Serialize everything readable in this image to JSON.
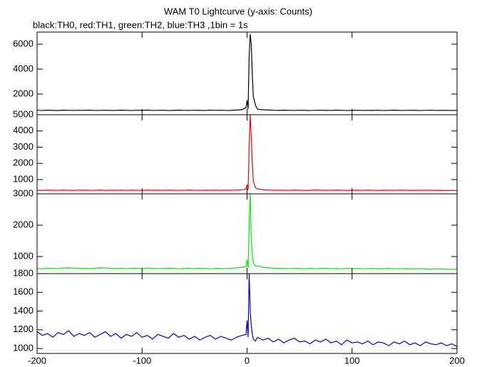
{
  "chart_data": [
    {
      "type": "line",
      "title": "WAM T0 Lightcurve (y-axis: Counts)",
      "subtitle": "black:TH0, red:TH1, green:TH2, blue:TH3 ,1bin = 1s",
      "series": [
        {
          "name": "TH0",
          "color": "#000000",
          "values": [
            700,
            680,
            710,
            690,
            675,
            705,
            695,
            685,
            700,
            690,
            710,
            680,
            695,
            700,
            685,
            690,
            705,
            695,
            680,
            700,
            690,
            710,
            685,
            695,
            700,
            680,
            690,
            705,
            695,
            685,
            700,
            690,
            680,
            710,
            695,
            700,
            685,
            690,
            720,
            740,
            900,
            1500,
            800,
            5000,
            6800,
            6000,
            3500,
            1800,
            1100,
            780,
            740,
            720,
            700,
            690,
            705,
            695,
            685,
            700,
            690,
            680,
            695,
            700,
            690,
            685,
            705,
            695,
            680,
            690,
            700,
            685,
            695,
            690,
            700,
            680,
            695,
            705,
            690,
            685,
            700,
            690,
            680,
            695,
            700,
            685,
            690,
            695,
            680,
            690
          ]
        }
      ],
      "x": [
        -200,
        -195,
        -190,
        -185,
        -180,
        -175,
        -170,
        -165,
        -160,
        -155,
        -150,
        -145,
        -140,
        -135,
        -130,
        -125,
        -120,
        -115,
        -110,
        -105,
        -100,
        -95,
        -90,
        -85,
        -80,
        -75,
        -70,
        -65,
        -60,
        -55,
        -50,
        -45,
        -40,
        -35,
        -30,
        -25,
        -20,
        -15,
        -10,
        -5,
        -1,
        0,
        1,
        2,
        3,
        4,
        5,
        6,
        8,
        10,
        15,
        20,
        25,
        30,
        35,
        40,
        45,
        50,
        55,
        60,
        65,
        70,
        75,
        80,
        85,
        90,
        95,
        100,
        105,
        110,
        115,
        120,
        125,
        130,
        135,
        140,
        145,
        150,
        155,
        160,
        165,
        170,
        175,
        180,
        185,
        190,
        195,
        200
      ],
      "xlim": [
        -200,
        200
      ],
      "ylim": [
        340,
        6970
      ],
      "yticks": [
        2000,
        4000,
        6000
      ]
    },
    {
      "type": "line",
      "series": [
        {
          "name": "TH1",
          "color": "#ff0000",
          "values": [
            340,
            330,
            350,
            345,
            335,
            355,
            340,
            330,
            345,
            350,
            335,
            340,
            355,
            330,
            345,
            340,
            350,
            335,
            345,
            340,
            330,
            355,
            340,
            345,
            335,
            350,
            340,
            330,
            345,
            355,
            340,
            335,
            345,
            340,
            350,
            335,
            345,
            340,
            360,
            370,
            400,
            700,
            350,
            3000,
            5000,
            3600,
            2000,
            900,
            500,
            420,
            380,
            360,
            350,
            345,
            340,
            335,
            350,
            345,
            330,
            340,
            355,
            345,
            335,
            340,
            350,
            345,
            330,
            340,
            345,
            335,
            350,
            340,
            330,
            345,
            340,
            335,
            350,
            345,
            330,
            340,
            335,
            345,
            340,
            330,
            335,
            325,
            330,
            320
          ]
        }
      ],
      "x": [
        -200,
        -195,
        -190,
        -185,
        -180,
        -175,
        -170,
        -165,
        -160,
        -155,
        -150,
        -145,
        -140,
        -135,
        -130,
        -125,
        -120,
        -115,
        -110,
        -105,
        -100,
        -95,
        -90,
        -85,
        -80,
        -75,
        -70,
        -65,
        -60,
        -55,
        -50,
        -45,
        -40,
        -35,
        -30,
        -25,
        -20,
        -15,
        -10,
        -5,
        -1,
        0,
        1,
        2,
        3,
        4,
        5,
        6,
        8,
        10,
        15,
        20,
        25,
        30,
        35,
        40,
        45,
        50,
        55,
        60,
        65,
        70,
        75,
        80,
        85,
        90,
        95,
        100,
        105,
        110,
        115,
        120,
        125,
        130,
        135,
        140,
        145,
        150,
        155,
        160,
        165,
        170,
        175,
        180,
        185,
        190,
        195,
        200
      ],
      "xlim": [
        -200,
        200
      ],
      "ylim": [
        120,
        5000
      ],
      "yticks": [
        1000,
        2000,
        3000,
        4000,
        5000
      ]
    },
    {
      "type": "line",
      "series": [
        {
          "name": "TH2",
          "color": "#00ee00",
          "values": [
            620,
            610,
            630,
            625,
            615,
            635,
            640,
            630,
            620,
            625,
            615,
            630,
            640,
            635,
            625,
            620,
            630,
            615,
            625,
            630,
            620,
            635,
            625,
            615,
            620,
            630,
            625,
            610,
            620,
            630,
            615,
            625,
            620,
            610,
            625,
            620,
            615,
            625,
            640,
            660,
            680,
            900,
            640,
            2000,
            3000,
            1500,
            1100,
            800,
            700,
            700,
            660,
            640,
            630,
            620,
            625,
            615,
            630,
            620,
            610,
            625,
            615,
            620,
            630,
            615,
            620,
            610,
            625,
            615,
            620,
            610,
            615,
            620,
            605,
            615,
            620,
            610,
            615,
            605,
            610,
            600,
            615,
            605,
            595,
            610,
            600,
            595,
            590,
            600
          ]
        }
      ],
      "x": [
        -200,
        -195,
        -190,
        -185,
        -180,
        -175,
        -170,
        -165,
        -160,
        -155,
        -150,
        -145,
        -140,
        -135,
        -130,
        -125,
        -120,
        -115,
        -110,
        -105,
        -100,
        -95,
        -90,
        -85,
        -80,
        -75,
        -70,
        -65,
        -60,
        -55,
        -50,
        -45,
        -40,
        -35,
        -30,
        -25,
        -20,
        -15,
        -10,
        -5,
        -1,
        0,
        1,
        2,
        3,
        4,
        5,
        6,
        8,
        10,
        15,
        20,
        25,
        30,
        35,
        40,
        45,
        50,
        55,
        60,
        65,
        70,
        75,
        80,
        85,
        90,
        95,
        100,
        105,
        110,
        115,
        120,
        125,
        130,
        135,
        140,
        145,
        150,
        155,
        160,
        165,
        170,
        175,
        180,
        185,
        190,
        195,
        200
      ],
      "xlim": [
        -200,
        200
      ],
      "ylim": [
        455,
        3000
      ],
      "yticks": [
        1000,
        2000,
        3000
      ]
    },
    {
      "type": "line",
      "series": [
        {
          "name": "TH3",
          "color": "#0000ee",
          "values": [
            1180,
            1140,
            1160,
            1120,
            1170,
            1150,
            1190,
            1130,
            1160,
            1140,
            1170,
            1120,
            1150,
            1180,
            1130,
            1160,
            1110,
            1150,
            1130,
            1170,
            1120,
            1140,
            1100,
            1150,
            1130,
            1110,
            1160,
            1120,
            1140,
            1100,
            1130,
            1090,
            1120,
            1140,
            1100,
            1130,
            1110,
            1090,
            1120,
            1140,
            1150,
            1300,
            1120,
            1800,
            1400,
            1250,
            1150,
            1100,
            1080,
            1120,
            1090,
            1110,
            1070,
            1100,
            1060,
            1090,
            1110,
            1070,
            1080,
            1050,
            1090,
            1070,
            1100,
            1060,
            1080,
            1040,
            1090,
            1060,
            1070,
            1050,
            1080,
            1040,
            1070,
            1060,
            1030,
            1070,
            1050,
            1080,
            1040,
            1060,
            1030,
            1070,
            1050,
            1040,
            1060,
            1030,
            1050,
            1020
          ]
        }
      ],
      "x": [
        -200,
        -195,
        -190,
        -185,
        -180,
        -175,
        -170,
        -165,
        -160,
        -155,
        -150,
        -145,
        -140,
        -135,
        -130,
        -125,
        -120,
        -115,
        -110,
        -105,
        -100,
        -95,
        -90,
        -85,
        -80,
        -75,
        -70,
        -65,
        -60,
        -55,
        -50,
        -45,
        -40,
        -35,
        -30,
        -25,
        -20,
        -15,
        -10,
        -5,
        -1,
        0,
        1,
        2,
        3,
        4,
        5,
        6,
        8,
        10,
        15,
        20,
        25,
        30,
        35,
        40,
        45,
        50,
        55,
        60,
        65,
        70,
        75,
        80,
        85,
        90,
        95,
        100,
        105,
        110,
        115,
        120,
        125,
        130,
        135,
        140,
        145,
        150,
        155,
        160,
        165,
        170,
        175,
        180,
        185,
        190,
        195,
        200
      ],
      "xlim": [
        -200,
        200
      ],
      "ylim": [
        947,
        1800
      ],
      "yticks": [
        1000,
        1200,
        1400,
        1600,
        1800
      ],
      "xticks": [
        -200,
        -100,
        0,
        100,
        200
      ]
    }
  ]
}
